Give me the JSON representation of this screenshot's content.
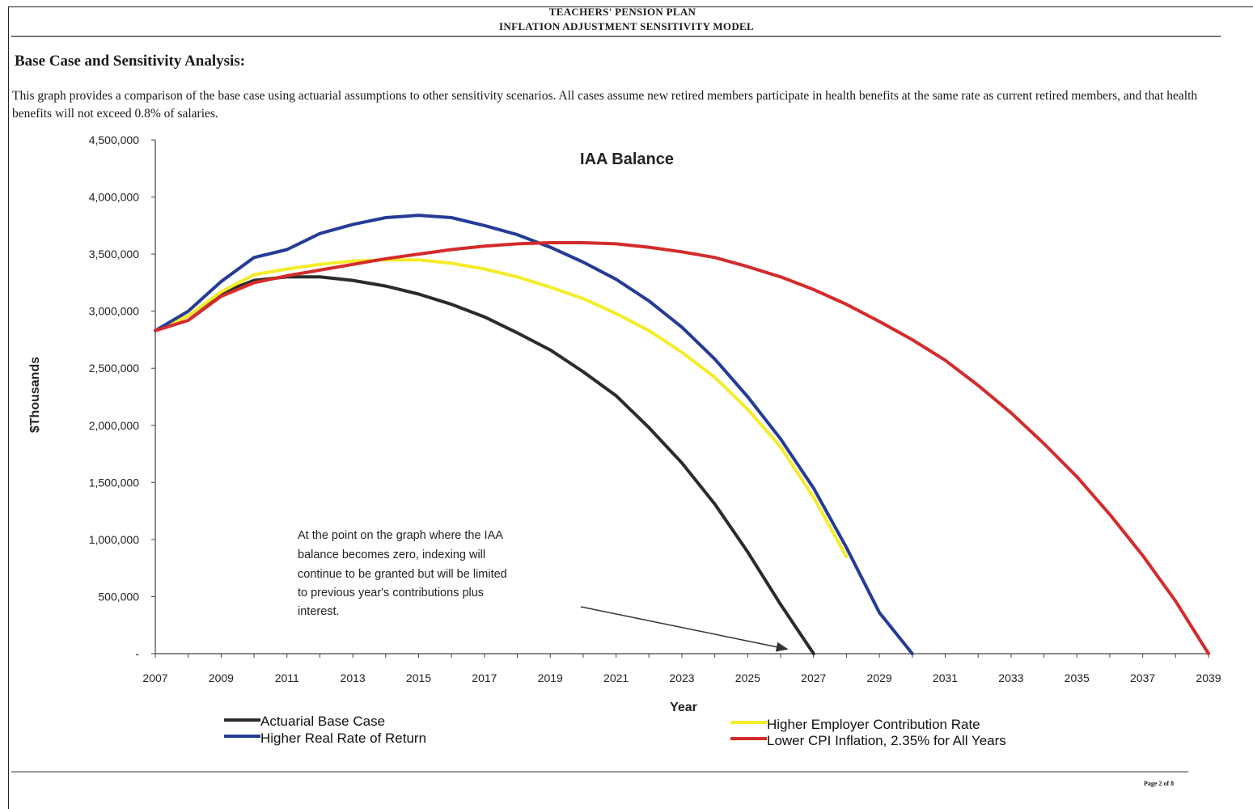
{
  "document": {
    "header_line1": "TEACHERS' PENSION PLAN",
    "header_line2": "INFLATION ADJUSTMENT SENSITIVITY MODEL",
    "section_heading": "Base Case and Sensitivity Analysis:",
    "description": "This graph provides a comparison of the base case using actuarial assumptions to other sensitivity scenarios.   All cases assume new retired members participate in health benefits at the same rate as current retired members, and that health benefits will not exceed 0.8% of salaries.",
    "page_number": "Page 2 of 8"
  },
  "chart_data": {
    "type": "line",
    "title": "IAA Balance",
    "xlabel": "Year",
    "ylabel": "$Thousands",
    "xlim": [
      2007,
      2039
    ],
    "ylim": [
      0,
      4500000
    ],
    "x_ticks": [
      "2007",
      "2009",
      "2011",
      "2013",
      "2015",
      "2017",
      "2019",
      "2021",
      "2023",
      "2025",
      "2027",
      "2029",
      "2031",
      "2033",
      "2035",
      "2037",
      "2039"
    ],
    "y_ticks": [
      "-",
      "500,000",
      "1,000,000",
      "1,500,000",
      "2,000,000",
      "2,500,000",
      "3,000,000",
      "3,500,000",
      "4,000,000",
      "4,500,000"
    ],
    "grid": false,
    "legend_position": "bottom",
    "annotation": {
      "lines": [
        "At the point on the graph where the IAA",
        "balance becomes zero, indexing will",
        "continue to be granted but will be limited",
        "to previous year's contributions plus",
        "interest."
      ],
      "arrow_to": [
        2026.2,
        40000
      ]
    },
    "series": [
      {
        "name": "Actuarial Base Case",
        "color": "#2b2b2b",
        "points": [
          [
            2007,
            2830000
          ],
          [
            2008,
            2960000
          ],
          [
            2009,
            3160000
          ],
          [
            2010,
            3270000
          ],
          [
            2011,
            3300000
          ],
          [
            2012,
            3300000
          ],
          [
            2013,
            3270000
          ],
          [
            2014,
            3220000
          ],
          [
            2015,
            3150000
          ],
          [
            2016,
            3060000
          ],
          [
            2017,
            2950000
          ],
          [
            2018,
            2810000
          ],
          [
            2019,
            2660000
          ],
          [
            2020,
            2470000
          ],
          [
            2021,
            2260000
          ],
          [
            2022,
            1980000
          ],
          [
            2023,
            1670000
          ],
          [
            2024,
            1310000
          ],
          [
            2025,
            890000
          ],
          [
            2026,
            430000
          ],
          [
            2027,
            0
          ]
        ]
      },
      {
        "name": "Higher Employer Contribution Rate",
        "color": "#f5ec2a",
        "points": [
          [
            2007,
            2830000
          ],
          [
            2008,
            2960000
          ],
          [
            2009,
            3170000
          ],
          [
            2010,
            3320000
          ],
          [
            2011,
            3370000
          ],
          [
            2012,
            3410000
          ],
          [
            2013,
            3440000
          ],
          [
            2014,
            3450000
          ],
          [
            2015,
            3450000
          ],
          [
            2016,
            3420000
          ],
          [
            2017,
            3370000
          ],
          [
            2018,
            3300000
          ],
          [
            2019,
            3210000
          ],
          [
            2020,
            3110000
          ],
          [
            2021,
            2980000
          ],
          [
            2022,
            2830000
          ],
          [
            2023,
            2640000
          ],
          [
            2024,
            2420000
          ],
          [
            2025,
            2140000
          ],
          [
            2026,
            1810000
          ],
          [
            2027,
            1370000
          ],
          [
            2028,
            850000
          ]
        ]
      },
      {
        "name": "Higher Real Rate of Return",
        "color": "#243c96",
        "points": [
          [
            2007,
            2830000
          ],
          [
            2008,
            3000000
          ],
          [
            2009,
            3260000
          ],
          [
            2010,
            3470000
          ],
          [
            2011,
            3540000
          ],
          [
            2012,
            3680000
          ],
          [
            2013,
            3760000
          ],
          [
            2014,
            3820000
          ],
          [
            2015,
            3840000
          ],
          [
            2016,
            3820000
          ],
          [
            2017,
            3750000
          ],
          [
            2018,
            3670000
          ],
          [
            2019,
            3560000
          ],
          [
            2020,
            3430000
          ],
          [
            2021,
            3280000
          ],
          [
            2022,
            3090000
          ],
          [
            2023,
            2860000
          ],
          [
            2024,
            2580000
          ],
          [
            2025,
            2250000
          ],
          [
            2026,
            1880000
          ],
          [
            2027,
            1450000
          ],
          [
            2028,
            930000
          ],
          [
            2029,
            360000
          ],
          [
            2030,
            0
          ]
        ]
      },
      {
        "name": "Lower CPI Inflation, 2.35% for All Years",
        "color": "#d42b2b",
        "points": [
          [
            2007,
            2830000
          ],
          [
            2008,
            2920000
          ],
          [
            2009,
            3130000
          ],
          [
            2010,
            3250000
          ],
          [
            2011,
            3310000
          ],
          [
            2012,
            3360000
          ],
          [
            2013,
            3410000
          ],
          [
            2014,
            3460000
          ],
          [
            2015,
            3500000
          ],
          [
            2016,
            3540000
          ],
          [
            2017,
            3570000
          ],
          [
            2018,
            3590000
          ],
          [
            2019,
            3600000
          ],
          [
            2020,
            3600000
          ],
          [
            2021,
            3590000
          ],
          [
            2022,
            3560000
          ],
          [
            2023,
            3520000
          ],
          [
            2024,
            3470000
          ],
          [
            2025,
            3390000
          ],
          [
            2026,
            3300000
          ],
          [
            2027,
            3190000
          ],
          [
            2028,
            3060000
          ],
          [
            2029,
            2910000
          ],
          [
            2030,
            2750000
          ],
          [
            2031,
            2570000
          ],
          [
            2032,
            2350000
          ],
          [
            2033,
            2110000
          ],
          [
            2034,
            1840000
          ],
          [
            2035,
            1550000
          ],
          [
            2036,
            1220000
          ],
          [
            2037,
            860000
          ],
          [
            2038,
            460000
          ],
          [
            2039,
            0
          ]
        ]
      }
    ],
    "legend": [
      {
        "label": "Actuarial Base Case",
        "color": "#2b2b2b"
      },
      {
        "label": "Higher Real Rate of Return",
        "color": "#243c96"
      },
      {
        "label": "Higher Employer Contribution Rate",
        "color": "#f5ec2a"
      },
      {
        "label": "Lower CPI Inflation, 2.35% for All Years",
        "color": "#d42b2b"
      }
    ]
  }
}
